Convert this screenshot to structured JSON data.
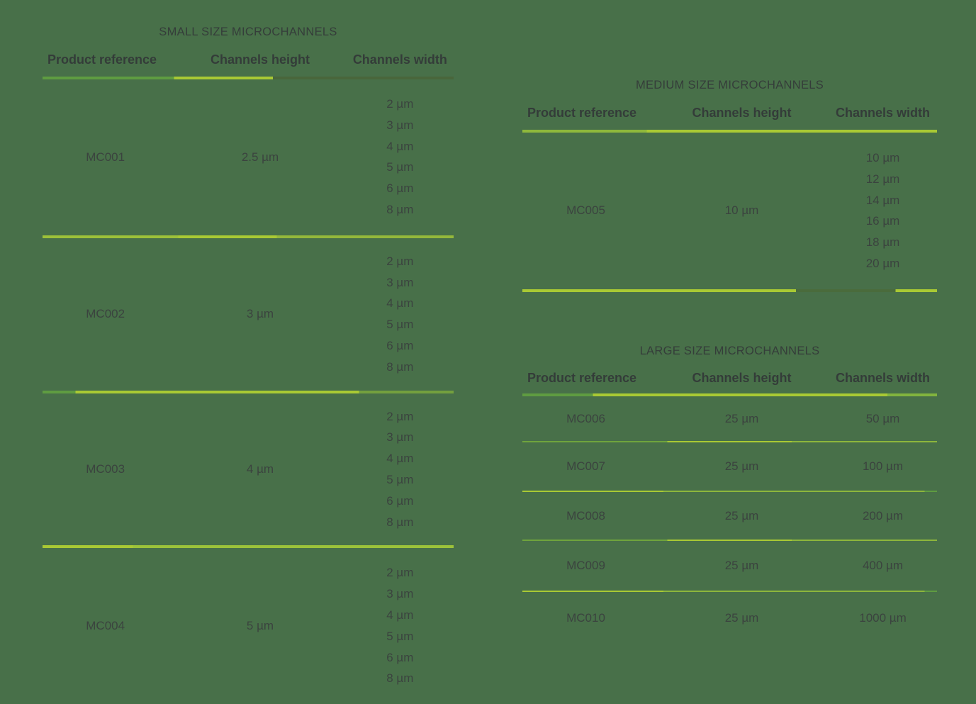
{
  "page": {
    "background": "#487049"
  },
  "colors": {
    "background": "#487049",
    "body_text": "#3b433f",
    "heading_text": "#343c39",
    "rule_green": "#5f9c41",
    "rule_chartreuse": "#a9c934",
    "rule_olive": "#49663b"
  },
  "tables": {
    "small": {
      "title": "SMALL SIZE MICROCHANNELS",
      "headers": [
        "Product reference",
        "Channels height",
        "Channels width"
      ],
      "rows": [
        {
          "ref": "MC001",
          "height": "2.5 µm",
          "widths": [
            "2 µm",
            "3 µm",
            "4 µm",
            "5 µm",
            "6 µm",
            "8 µm"
          ]
        },
        {
          "ref": "MC002",
          "height": "3 µm",
          "widths": [
            "2 µm",
            "3 µm",
            "4 µm",
            "5 µm",
            "6 µm",
            "8 µm"
          ]
        },
        {
          "ref": "MC003",
          "height": "4 µm",
          "widths": [
            "2 µm",
            "3 µm",
            "4 µm",
            "5 µm",
            "6 µm",
            "8 µm"
          ]
        },
        {
          "ref": "MC004",
          "height": "5 µm",
          "widths": [
            "2 µm",
            "3 µm",
            "4 µm",
            "5 µm",
            "6 µm",
            "8 µm"
          ]
        }
      ]
    },
    "medium": {
      "title": "MEDIUM SIZE MICROCHANNELS",
      "headers": [
        "Product reference",
        "Channels height",
        "Channels width"
      ],
      "rows": [
        {
          "ref": "MC005",
          "height": "10 µm",
          "widths": [
            "10 µm",
            "12 µm",
            "14 µm",
            "16 µm",
            "18 µm",
            "20 µm"
          ]
        }
      ]
    },
    "large": {
      "title": "LARGE SIZE MICROCHANNELS",
      "headers": [
        "Product reference",
        "Channels height",
        "Channels width"
      ],
      "rows": [
        {
          "ref": "MC006",
          "height": "25 µm",
          "width": "50 µm"
        },
        {
          "ref": "MC007",
          "height": "25 µm",
          "width": "100 µm"
        },
        {
          "ref": "MC008",
          "height": "25 µm",
          "width": "200 µm"
        },
        {
          "ref": "MC009",
          "height": "25 µm",
          "width": "400 µm"
        },
        {
          "ref": "MC010",
          "height": "25 µm",
          "width": "1000 µm"
        }
      ]
    }
  }
}
